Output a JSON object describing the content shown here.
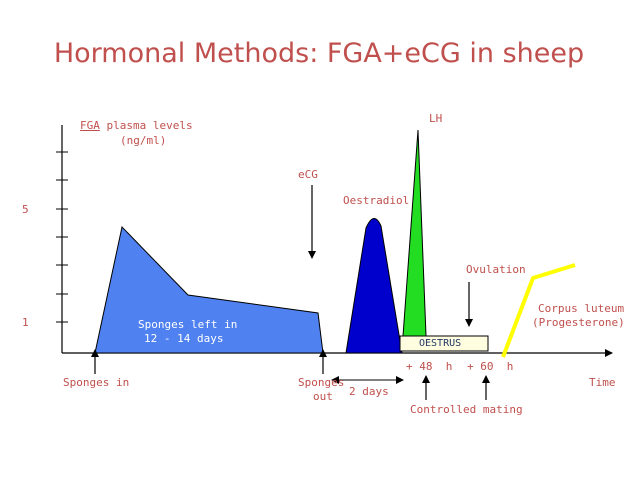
{
  "title": "Hormonal Methods: FGA+eCG in sheep",
  "y_axis": {
    "label_underlined": "FGA",
    "label_rest": " plasma levels",
    "label_units": "(ng/ml)",
    "tick_5": "5",
    "tick_1": "1"
  },
  "labels": {
    "lh": "LH",
    "ecg": "eCG",
    "oestradiol": "Oestradiol",
    "ovulation": "Ovulation",
    "corpus_luteum_1": "Corpus luteum",
    "corpus_luteum_2": "(Progesterone)",
    "sponges_left_1": "Sponges left in",
    "sponges_left_2": "12 - 14 days",
    "oestrus": "OESTRUS",
    "plus48": "+ 48  h",
    "plus60": "+ 60  h",
    "sponges_in": "Sponges in",
    "sponges_out_1": "Sponges",
    "sponges_out_2": "out",
    "two_days": "2 days",
    "controlled_mating": "Controlled mating",
    "time": "Time"
  },
  "colors": {
    "title": "#c0504d",
    "fga": "#4f81f0",
    "oestradiol": "#0000cc",
    "lh": "#22dd22",
    "corpus_luteum": "#ffff00",
    "oestrus_box": "#fffde0"
  }
}
